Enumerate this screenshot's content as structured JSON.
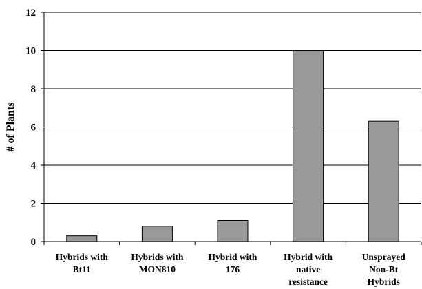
{
  "chart_data": {
    "type": "bar",
    "title": "",
    "xlabel": "",
    "ylabel": "# of Plants",
    "ylim": [
      0,
      12
    ],
    "yticks": [
      0,
      2,
      4,
      6,
      8,
      10,
      12
    ],
    "grid": true,
    "legend": "none",
    "bar_color": "#999999",
    "categories": [
      [
        "Hybrids with",
        "Bt11"
      ],
      [
        "Hybrids with",
        "MON810"
      ],
      [
        "Hybrid with",
        "176"
      ],
      [
        "Hybrid with",
        "native",
        "resistance"
      ],
      [
        "Unsprayed",
        "Non-Bt",
        "Hybrids"
      ]
    ],
    "values": [
      0.3,
      0.8,
      1.1,
      10,
      6.3
    ]
  }
}
